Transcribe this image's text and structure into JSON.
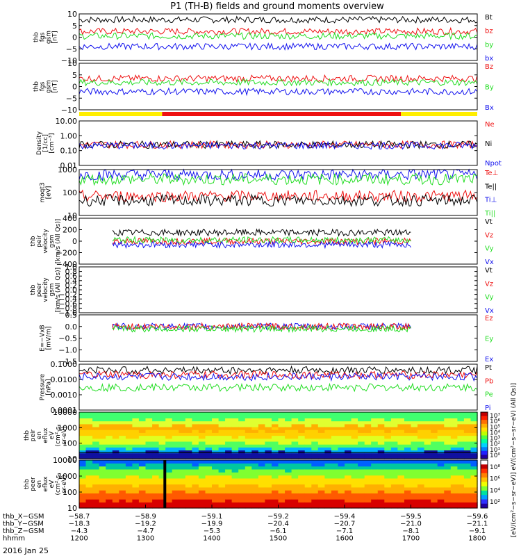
{
  "title": "P1 (TH-B) fields and ground moments overview",
  "date_label": "2016 Jan 25",
  "bar_colors": {
    "yellow": "#ffee00",
    "red": "#ee1111"
  },
  "colors": {
    "black": "#000000",
    "red": "#ee1111",
    "green": "#22dd22",
    "blue": "#1111ee"
  },
  "chart_data": [
    {
      "type": "line",
      "id": "fgs1",
      "ylabel": [
        "thb",
        "fgs",
        "gsm",
        "[nT]"
      ],
      "ylim": [
        -10,
        10
      ],
      "ticks": [
        "10",
        "5",
        "0",
        "−5",
        "−10"
      ],
      "log": false,
      "legend": [
        "Bt",
        "bz",
        "by",
        "bx"
      ],
      "series": [
        {
          "name": "Bt",
          "color": "black",
          "level": 7.5
        },
        {
          "name": "bz",
          "color": "red",
          "level": 2.5
        },
        {
          "name": "by",
          "color": "green",
          "level": 0.5
        },
        {
          "name": "bx",
          "color": "blue",
          "level": -4
        }
      ]
    },
    {
      "type": "line",
      "id": "fgs2",
      "ylabel": [
        "thb",
        "fgs",
        "gsm",
        "[nT]"
      ],
      "ylim": [
        -13,
        10
      ],
      "ticks": [
        "10",
        "5",
        "0",
        "−5",
        "−10"
      ],
      "log": false,
      "legend": [
        "Bz",
        "By",
        "Bx"
      ],
      "series": [
        {
          "name": "Bz",
          "color": "red",
          "level": 2.5
        },
        {
          "name": "By",
          "color": "green",
          "level": 0.5
        },
        {
          "name": "Bx",
          "color": "blue",
          "level": -4
        }
      ]
    },
    {
      "type": "line",
      "id": "density",
      "ylabel": [
        "Density",
        "[1/cc]",
        "[cm⁻³]"
      ],
      "ylim": [
        0.01,
        10
      ],
      "ticks": [
        "10.00",
        "1.00",
        "0.10",
        "0.01"
      ],
      "log": true,
      "legend": [
        "Ne",
        "Ni",
        "Npot"
      ],
      "series": [
        {
          "name": "Ne",
          "color": "red",
          "level": 0.25
        },
        {
          "name": "Ni",
          "color": "black",
          "level": 0.25
        },
        {
          "name": "Npot",
          "color": "blue",
          "level": 0.22
        }
      ]
    },
    {
      "type": "line",
      "id": "temp",
      "ylabel": [
        "moqt3",
        "[eV]"
      ],
      "ylim": [
        10,
        1000
      ],
      "ticks": [
        "1000",
        "100",
        "10"
      ],
      "log": true,
      "legend": [
        "Te⊥",
        "Te||",
        "Ti⊥",
        "Ti||"
      ],
      "series": [
        {
          "name": "Ti⊥",
          "color": "blue",
          "level": 600
        },
        {
          "name": "Ti||",
          "color": "green",
          "level": 380
        },
        {
          "name": "Te⊥",
          "color": "red",
          "level": 70
        },
        {
          "name": "Te||",
          "color": "black",
          "level": 45
        }
      ]
    },
    {
      "type": "line",
      "id": "peir_vel",
      "ylabel": [
        "thb",
        "peir",
        "velocity",
        "gsm",
        "[km/s (All Qs)]"
      ],
      "ylim": [
        -400,
        400
      ],
      "ticks": [
        "400",
        "200",
        "0",
        "−200",
        "−400"
      ],
      "log": false,
      "x_range": [
        1250,
        1700
      ],
      "legend": [
        "Vt",
        "Vz",
        "Vy",
        "Vx"
      ],
      "series": [
        {
          "name": "Vt",
          "color": "black",
          "level": 150
        },
        {
          "name": "Vz",
          "color": "red",
          "level": 0
        },
        {
          "name": "Vy",
          "color": "green",
          "level": 20
        },
        {
          "name": "Vx",
          "color": "blue",
          "level": -60
        }
      ]
    },
    {
      "type": "line",
      "id": "peer_vel",
      "ylabel": [
        "thb",
        "peer",
        "velocity",
        "gsm",
        "[km/s (All Qs)]"
      ],
      "ylim": [
        -1,
        1
      ],
      "ticks": [
        "1.0",
        "0.8",
        "0.6",
        "0.4",
        "0.2",
        "0.0",
        "−0.2",
        "−0.4",
        "−0.6",
        "−0.8",
        "−1.0"
      ],
      "log": false,
      "legend": [
        "Vt",
        "Vz",
        "Vy",
        "Vx"
      ],
      "series": []
    },
    {
      "type": "line",
      "id": "efield",
      "ylabel": [
        "E=−VxB",
        "[mV/m]"
      ],
      "ylim": [
        -1.5,
        0.5
      ],
      "ticks": [
        "0.5",
        "0.0",
        "−0.5",
        "−1.0",
        "−1.5"
      ],
      "log": false,
      "x_range": [
        1250,
        1700
      ],
      "legend": [
        "Ez",
        "Ey",
        "Ex"
      ],
      "series": [
        {
          "name": "Ex",
          "color": "blue",
          "level": 0
        },
        {
          "name": "Ez",
          "color": "red",
          "level": 0
        },
        {
          "name": "Ey",
          "color": "green",
          "level": -0.1
        }
      ]
    },
    {
      "type": "line",
      "id": "pressure",
      "ylabel": [
        "Pressure",
        "[nPa]"
      ],
      "ylim": [
        0.0001,
        0.1
      ],
      "ticks": [
        "0.1000",
        "0.0100",
        "0.0010",
        "0.0001"
      ],
      "log": true,
      "legend": [
        "Pt",
        "Pb",
        "Pe",
        "Pi"
      ],
      "series": [
        {
          "name": "Pt",
          "color": "black",
          "level": 0.04
        },
        {
          "name": "Pb",
          "color": "red",
          "level": 0.02
        },
        {
          "name": "Pi",
          "color": "blue",
          "level": 0.015
        },
        {
          "name": "Pe",
          "color": "green",
          "level": 0.003
        }
      ]
    },
    {
      "type": "heatmap",
      "id": "peir_en",
      "ylabel": [
        "thb",
        "peir",
        "en",
        "eflux",
        "eV",
        "(cm²-s-",
        "sr-eV)"
      ],
      "ticks": [
        "10000",
        "1000",
        "100",
        "10"
      ],
      "ylim": [
        5,
        25000
      ],
      "log": true
    },
    {
      "type": "heatmap",
      "id": "peer_en",
      "ylabel": [
        "thb",
        "peer",
        "en",
        "eflux",
        "eV",
        "(cm²-s-",
        "sr-eV)"
      ],
      "ticks": [
        "10000",
        "1000",
        "100",
        "10"
      ],
      "ylim": [
        5,
        25000
      ],
      "log": true
    }
  ],
  "colorbar1": {
    "labels": [
      "10⁷",
      "10⁶",
      "10⁵",
      "10⁴",
      "10³",
      "10²",
      "10¹",
      "10⁰"
    ]
  },
  "colorbar2": {
    "labels": [
      "10⁸",
      "10⁶",
      "10⁴",
      "10²"
    ]
  },
  "colorbar_label": "[eV/(cm²−s−sr−eV)] eV/(cm²−s−sr−eV) (All Qs)]",
  "x_axis": {
    "row_labels": [
      "thb_X−GSM",
      "thb_Y−GSM",
      "thb_Z−GSM",
      "hhmm"
    ],
    "columns": [
      [
        "−58.7",
        "−18.3",
        "−4.3",
        "1200"
      ],
      [
        "−58.9",
        "−19.2",
        "−4.7",
        "1300"
      ],
      [
        "−59.1",
        "−19.9",
        "−5.3",
        "1400"
      ],
      [
        "−59.2",
        "−20.4",
        "−6.1",
        "1500"
      ],
      [
        "−59.4",
        "−20.7",
        "−7.1",
        "1600"
      ],
      [
        "−59.5",
        "−21.0",
        "−8.1",
        "1700"
      ],
      [
        "−59.6",
        "−21.1",
        "−9.1",
        "1800"
      ]
    ]
  }
}
